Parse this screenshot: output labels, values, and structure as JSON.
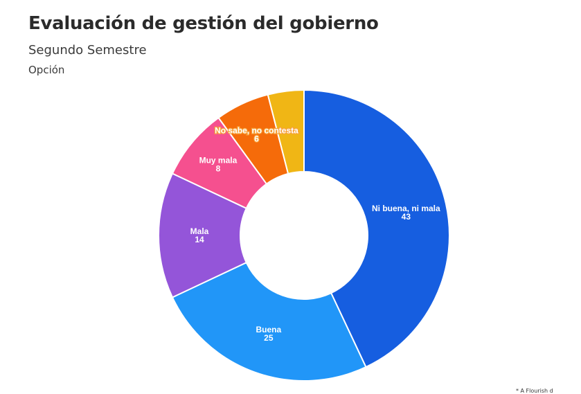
{
  "header": {
    "title": "Evaluación de gestión del gobierno",
    "subtitle": "Segundo Semestre",
    "series_label": "Opción"
  },
  "chart_data": {
    "type": "pie",
    "donut": true,
    "title": "Evaluación de gestión del gobierno",
    "subtitle": "Segundo Semestre",
    "legend_title": "Opción",
    "start_angle_deg": 0,
    "direction": "clockwise",
    "slices": [
      {
        "label": "Ni buena, ni mala",
        "value": 43,
        "color": "#165ee0"
      },
      {
        "label": "Buena",
        "value": 25,
        "color": "#2196f8"
      },
      {
        "label": "Mala",
        "value": 14,
        "color": "#9455d9"
      },
      {
        "label": "Muy mala",
        "value": 8,
        "color": "#f5508f"
      },
      {
        "label": "No sabe, no contesta",
        "value": 6,
        "color": "#f56b0a"
      },
      {
        "label": "",
        "value": 4,
        "color": "#f0b615"
      }
    ]
  },
  "footnote": "* A Flourish d"
}
